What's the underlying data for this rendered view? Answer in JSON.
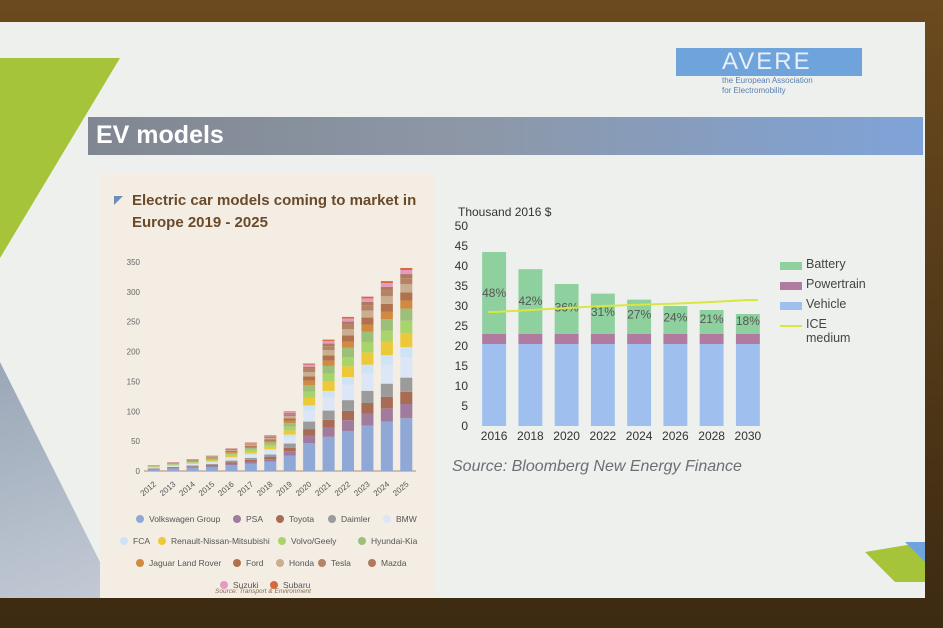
{
  "slide": {
    "title": "EV models",
    "logo": {
      "name": "AVERE",
      "subtitle_line1": "the European Association",
      "subtitle_line2": "for Electromobility"
    }
  },
  "left_panel": {
    "title_line1": "Electric car models coming to market in",
    "title_line2": "Europe 2019 - 2025",
    "source": "Source: Transport & Environment"
  },
  "right_panel": {
    "source": "Source: Bloomberg New Energy Finance"
  },
  "colors": {
    "brand": "#6fa3dc",
    "accent_green": "#a5c43a",
    "battery": "#8fd19e",
    "powertrain": "#b07aa1",
    "vehicle": "#9fc0ee",
    "ice": "#d8e642"
  },
  "chart_data": [
    {
      "type": "bar",
      "stacked": true,
      "title": "Electric car models coming to market in Europe 2019 - 2025",
      "xlabel": "",
      "ylabel": "",
      "ylim": [
        0,
        350
      ],
      "yticks": [
        0,
        50,
        100,
        150,
        200,
        250,
        300,
        350
      ],
      "categories": [
        "2012",
        "2013",
        "2014",
        "2015",
        "2016",
        "2017",
        "2018",
        "2019",
        "2020",
        "2021",
        "2022",
        "2023",
        "2024",
        "2025"
      ],
      "totals": [
        10,
        15,
        20,
        26,
        38,
        48,
        60,
        100,
        180,
        220,
        258,
        292,
        318,
        340
      ],
      "series": [
        {
          "name": "Volkswagen Group",
          "color": "#8fa8d6"
        },
        {
          "name": "PSA",
          "color": "#a07b9e"
        },
        {
          "name": "Toyota",
          "color": "#a86c55"
        },
        {
          "name": "Daimler",
          "color": "#9b9b9b"
        },
        {
          "name": "BMW",
          "color": "#dde6f6"
        },
        {
          "name": "FCA",
          "color": "#cfe3f6"
        },
        {
          "name": "Renault-Nissan-Mitsubishi",
          "color": "#ecc938"
        },
        {
          "name": "Volvo/Geely",
          "color": "#a9d36b"
        },
        {
          "name": "Hyundai-Kia",
          "color": "#9cbf7a"
        },
        {
          "name": "Jaguar Land Rover",
          "color": "#d18a40"
        },
        {
          "name": "Ford",
          "color": "#b0714c"
        },
        {
          "name": "Honda",
          "color": "#c9ae90"
        },
        {
          "name": "Tesla",
          "color": "#b5836a"
        },
        {
          "name": "Mazda",
          "color": "#b07a5d"
        },
        {
          "name": "Suzuki",
          "color": "#e49ac4"
        },
        {
          "name": "Subaru",
          "color": "#d8693a"
        }
      ],
      "legend_placement": "bottom",
      "grid": false
    },
    {
      "type": "bar",
      "stacked": true,
      "title": "",
      "ylabel": "Thousand 2016 $",
      "xlabel": "",
      "ylim": [
        0,
        50
      ],
      "yticks": [
        0,
        5,
        10,
        15,
        20,
        25,
        30,
        35,
        40,
        45,
        50
      ],
      "categories": [
        "2016",
        "2018",
        "2020",
        "2022",
        "2024",
        "2026",
        "2028",
        "2030"
      ],
      "series": [
        {
          "name": "Vehicle",
          "color": "#9fc0ee",
          "values": [
            20.5,
            20.5,
            20.5,
            20.5,
            20.5,
            20.5,
            20.5,
            20.5
          ]
        },
        {
          "name": "Powertrain",
          "color": "#b07aa1",
          "values": [
            2.5,
            2.5,
            2.5,
            2.5,
            2.5,
            2.5,
            2.5,
            2.5
          ]
        },
        {
          "name": "Battery",
          "color": "#8fd19e",
          "values": [
            20.5,
            16.2,
            12.5,
            10.1,
            8.6,
            7.0,
            6.0,
            5.0
          ]
        }
      ],
      "line_series": {
        "name": "ICE medium",
        "color": "#d8e642",
        "values": [
          28.5,
          29.0,
          29.5,
          30.0,
          30.3,
          30.6,
          31.0,
          31.5
        ]
      },
      "battery_share_labels": [
        "48%",
        "42%",
        "36%",
        "31%",
        "27%",
        "24%",
        "21%",
        "18%"
      ],
      "legend_order": [
        "Battery",
        "Powertrain",
        "Vehicle",
        "ICE medium"
      ],
      "legend_placement": "right",
      "grid": false
    }
  ]
}
